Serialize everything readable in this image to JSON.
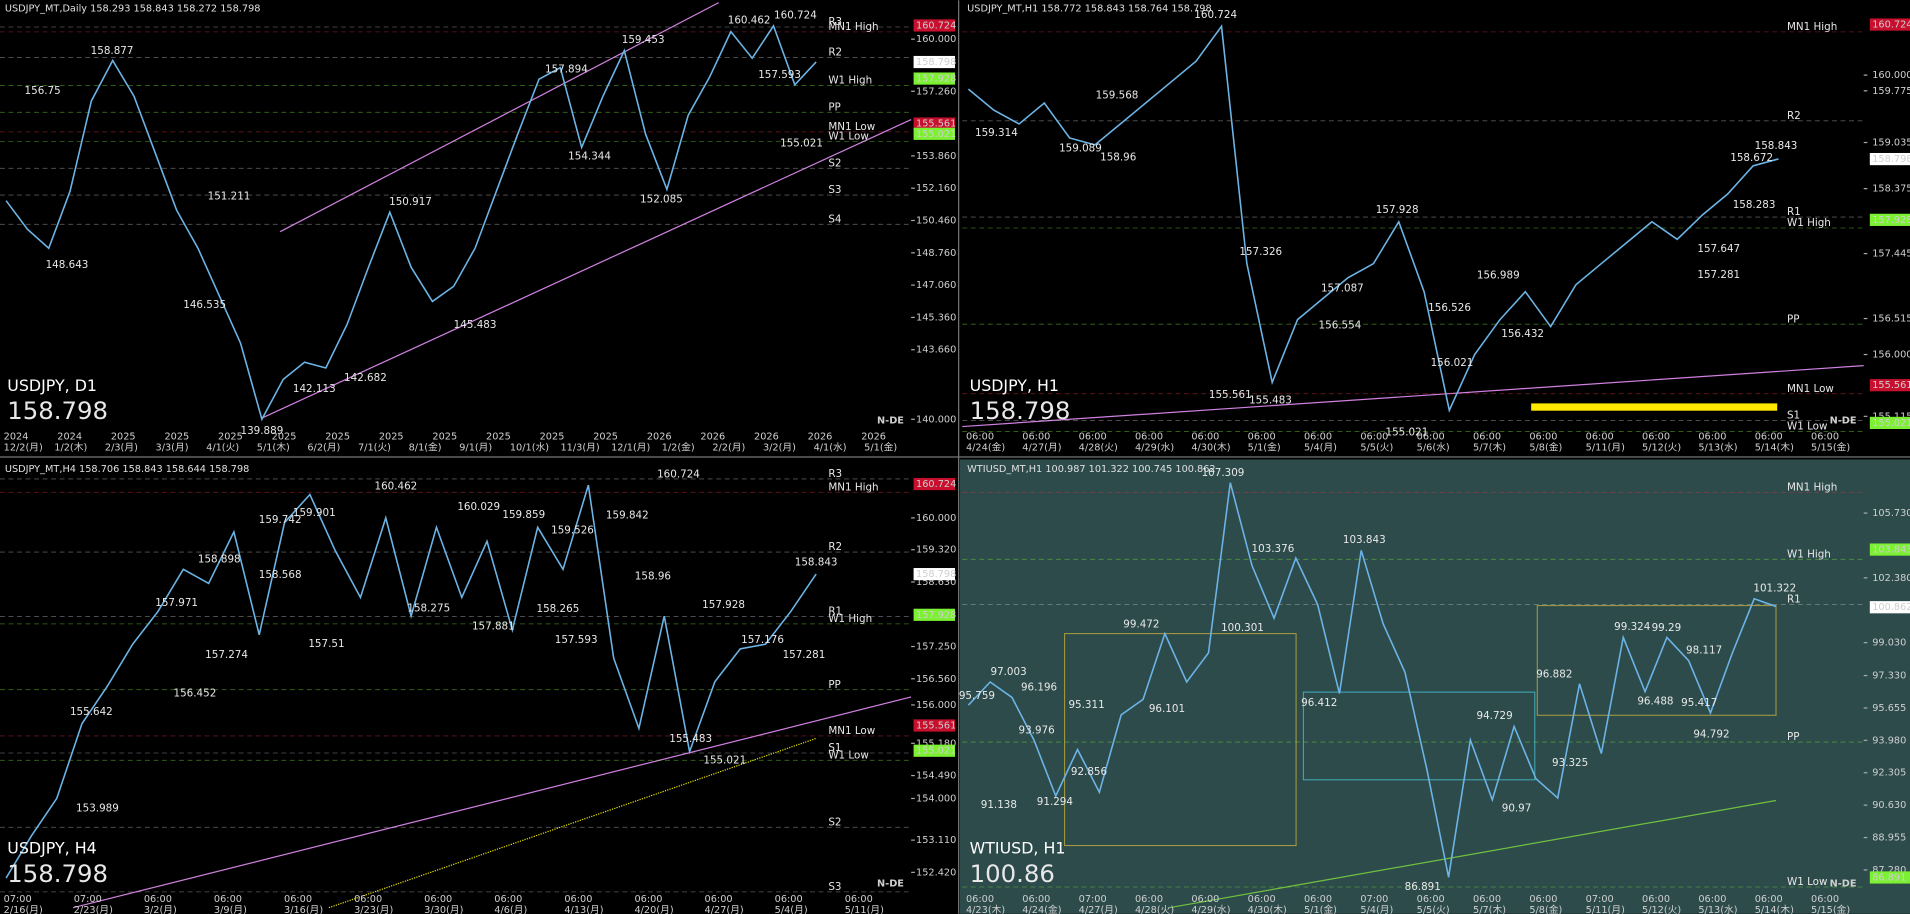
{
  "logo": "N-DE",
  "panels": [
    {
      "header": "USDJPY_MT,Daily  158.293 158.843 158.272 158.798",
      "symbol": "USDJPY, D1",
      "price": "158.798",
      "price_color": "#ffd21e",
      "ylim": [
        139.49,
        161.41
      ],
      "yticks": [
        {
          "value": 160,
          "label": "160.000"
        },
        {
          "value": 157.26,
          "label": "157.260"
        },
        {
          "value": 153.86,
          "label": "153.860"
        },
        {
          "value": 152.16,
          "label": "152.160"
        },
        {
          "value": 150.46,
          "label": "150.460"
        },
        {
          "value": 148.76,
          "label": "148.760"
        },
        {
          "value": 147.06,
          "label": "147.060"
        },
        {
          "value": 145.36,
          "label": "145.360"
        },
        {
          "value": 143.66,
          "label": "143.660"
        },
        {
          "value": 140,
          "label": "140.000"
        }
      ],
      "boxes": [
        {
          "value": 160.724,
          "color": "#c8102e"
        },
        {
          "value": 158.798,
          "color": "#ffffff"
        },
        {
          "value": 157.928,
          "color": "#7cf032"
        },
        {
          "value": 155.561,
          "color": "#c8102e"
        },
        {
          "value": 155.021,
          "color": "#7cf032"
        }
      ],
      "levels": [
        {
          "text": "R3",
          "color": "#c0c0c0"
        },
        {
          "text": "MN1 High",
          "color": "#e0304a"
        },
        {
          "text": "R2",
          "color": "#c0c0c0"
        },
        {
          "text": "W1 High",
          "color": "#7cf032"
        },
        {
          "text": "PP",
          "color": "#7cf032"
        },
        {
          "text": "MN1 Low",
          "color": "#e0304a"
        },
        {
          "text": "W1 Low",
          "color": "#7cf032"
        },
        {
          "text": "S2",
          "color": "#c0c0c0"
        },
        {
          "text": "S3",
          "color": "#c0c0c0"
        },
        {
          "text": "S4",
          "color": "#c0c0c0"
        }
      ],
      "annotations": [
        158.877,
        156.75,
        148.643,
        146.535,
        151.211,
        139.889,
        142.113,
        142.682,
        150.917,
        145.483,
        157.894,
        154.344,
        159.453,
        152.085,
        160.462,
        160.724,
        157.593,
        155.021
      ],
      "axis_top": [
        "2024",
        "2024",
        "2025",
        "2025",
        "2025",
        "2025",
        "2025",
        "2025",
        "2025",
        "2025",
        "2025",
        "2025",
        "2026",
        "2026",
        "2026",
        "2026",
        "2026"
      ],
      "axis_bottom": [
        "12/2(月)",
        "1/2(木)",
        "2/3(月)",
        "3/3(月)",
        "4/1(火)",
        "5/1(木)",
        "6/2(月)",
        "7/1(火)",
        "8/1(金)",
        "9/1(月)",
        "10/1(水)",
        "11/3(月)",
        "12/1(月)",
        "1/2(金)",
        "2/2(月)",
        "3/2(月)",
        "4/1(水)",
        "5/1(金)"
      ],
      "series": [
        151.5,
        150,
        149,
        152,
        156.75,
        158.88,
        157,
        154,
        151,
        149,
        146.5,
        144,
        140,
        142.1,
        143,
        142.7,
        145,
        148,
        150.9,
        148,
        146.2,
        147,
        149,
        152,
        155,
        157.9,
        158.5,
        154.3,
        157,
        159.4,
        155,
        152.1,
        156,
        158,
        160.4,
        159,
        160.7,
        157.6,
        158.8
      ]
    },
    {
      "header": "USDJPY_MT,H1  158.772 158.843 158.764 158.798",
      "symbol": "USDJPY, H1",
      "price": "158.798",
      "price_color": "#ffd21e",
      "ylim": [
        154.934,
        160.898
      ],
      "yticks": [
        {
          "value": 160,
          "label": "160.000"
        },
        {
          "value": 159.775,
          "label": "159.775"
        },
        {
          "value": 159.035,
          "label": "159.035"
        },
        {
          "value": 158.375,
          "label": "158.375"
        },
        {
          "value": 157.445,
          "label": "157.445"
        },
        {
          "value": 156.515,
          "label": "156.515"
        },
        {
          "value": 156,
          "label": "156.000"
        },
        {
          "value": 155.115,
          "label": "155.115"
        }
      ],
      "boxes": [
        {
          "value": 160.724,
          "color": "#c8102e"
        },
        {
          "value": 158.798,
          "color": "#ffffff"
        },
        {
          "value": 157.928,
          "color": "#7cf032"
        },
        {
          "value": 155.561,
          "color": "#c8102e"
        },
        {
          "value": 155.021,
          "color": "#7cf032"
        }
      ],
      "levels": [
        {
          "text": "MN1 High",
          "color": "#e0304a"
        },
        {
          "text": "R2",
          "color": "#c0c0c0"
        },
        {
          "text": "R1",
          "color": "#c0c0c0"
        },
        {
          "text": "W1 High",
          "color": "#7cf032"
        },
        {
          "text": "PP",
          "color": "#7cf032"
        },
        {
          "text": "MN1 Low",
          "color": "#e0304a"
        },
        {
          "text": "S1",
          "color": "#c0c0c0"
        },
        {
          "text": "W1 Low",
          "color": "#7cf032"
        }
      ],
      "annotations": [
        160.724,
        159.568,
        159.314,
        159.089,
        158.96,
        157.326,
        157.928,
        157.087,
        156.554,
        156.526,
        156.989,
        156.432,
        156.021,
        155.561,
        155.483,
        155.021,
        157.647,
        157.281,
        158.283,
        158.672,
        158.843
      ],
      "axis_top": [
        "06:00",
        "06:00",
        "06:00",
        "06:00",
        "06:00",
        "06:00",
        "06:00",
        "06:00",
        "06:00",
        "06:00",
        "06:00",
        "06:00",
        "06:00",
        "06:00",
        "06:00",
        "06:00"
      ],
      "axis_bottom": [
        "4/24(金)",
        "4/27(月)",
        "4/28(火)",
        "4/29(水)",
        "4/30(木)",
        "5/1(金)",
        "5/4(月)",
        "5/5(火)",
        "5/6(水)",
        "5/7(木)",
        "5/8(金)",
        "5/11(月)",
        "5/12(火)",
        "5/13(水)",
        "5/14(木)",
        "5/15(金)"
      ],
      "series": [
        159.8,
        159.5,
        159.3,
        159.6,
        159.1,
        159,
        159.3,
        159.6,
        159.9,
        160.2,
        160.7,
        157.3,
        155.6,
        156.5,
        156.8,
        157.1,
        157.3,
        157.9,
        156.9,
        155.2,
        156,
        156.5,
        156.9,
        156.4,
        157,
        157.3,
        157.6,
        157.9,
        157.65,
        158,
        158.3,
        158.7,
        158.8
      ]
    },
    {
      "header": "USDJPY_MT,H4  158.706 158.843 158.644 158.798",
      "symbol": "USDJPY, H4",
      "price": "158.798",
      "price_color": "#ffd21e",
      "ylim": [
        152.003,
        160.964
      ],
      "yticks": [
        {
          "value": 160,
          "label": "160.000"
        },
        {
          "value": 159.32,
          "label": "159.320"
        },
        {
          "value": 158.63,
          "label": "158.630"
        },
        {
          "value": 157.25,
          "label": "157.250"
        },
        {
          "value": 156.56,
          "label": "156.560"
        },
        {
          "value": 156,
          "label": "156.000"
        },
        {
          "value": 155.18,
          "label": "155.180"
        },
        {
          "value": 154.49,
          "label": "154.490"
        },
        {
          "value": 154,
          "label": "154.000"
        },
        {
          "value": 153.11,
          "label": "153.110"
        },
        {
          "value": 152.42,
          "label": "152.420"
        }
      ],
      "boxes": [
        {
          "value": 160.724,
          "color": "#c8102e"
        },
        {
          "value": 158.798,
          "color": "#ffffff"
        },
        {
          "value": 157.928,
          "color": "#7cf032"
        },
        {
          "value": 155.561,
          "color": "#c8102e"
        },
        {
          "value": 155.021,
          "color": "#7cf032"
        }
      ],
      "levels": [
        {
          "text": "R3",
          "color": "#c0c0c0"
        },
        {
          "text": "MN1 High",
          "color": "#e0304a"
        },
        {
          "text": "R2",
          "color": "#c0c0c0"
        },
        {
          "text": "R1",
          "color": "#c0c0c0"
        },
        {
          "text": "W1 High",
          "color": "#7cf032"
        },
        {
          "text": "PP",
          "color": "#7cf032"
        },
        {
          "text": "MN1 Low",
          "color": "#e0304a"
        },
        {
          "text": "S1",
          "color": "#c0c0c0"
        },
        {
          "text": "W1 Low",
          "color": "#7cf032"
        },
        {
          "text": "S2",
          "color": "#c0c0c0"
        },
        {
          "text": "S3",
          "color": "#c0c0c0"
        }
      ],
      "annotations": [
        153.989,
        155.642,
        156.452,
        157.274,
        157.971,
        158.898,
        158.568,
        157.51,
        159.742,
        159.901,
        160.462,
        158.275,
        160.029,
        157.881,
        159.859,
        159.526,
        158.265,
        157.593,
        159.842,
        158.96,
        160.724,
        157.928,
        155.483,
        155.021,
        157.176,
        157.281,
        158.843
      ],
      "axis_top": [
        "07:00",
        "07:00",
        "06:00",
        "06:00",
        "06:00",
        "06:00",
        "06:00",
        "06:00",
        "06:00",
        "06:00",
        "06:00",
        "06:00",
        "06:00"
      ],
      "axis_bottom": [
        "2/16(月)",
        "2/23(月)",
        "3/2(月)",
        "3/9(月)",
        "3/16(月)",
        "3/23(月)",
        "3/30(月)",
        "4/6(月)",
        "4/13(月)",
        "4/20(月)",
        "4/27(月)",
        "5/4(月)",
        "5/11(月)"
      ],
      "series": [
        152.3,
        153.2,
        154,
        155.6,
        156.4,
        157.3,
        158,
        158.9,
        158.6,
        159.7,
        157.5,
        159.9,
        160.5,
        159.3,
        158.3,
        160,
        157.9,
        159.8,
        158.3,
        159.5,
        157.6,
        159.8,
        158.9,
        160.7,
        157,
        155.5,
        157.9,
        155,
        156.5,
        157.2,
        157.3,
        158,
        158.8
      ]
    },
    {
      "header": "WTIUSD_MT,H1  100.987 101.322 100.745 100.862",
      "symbol": "WTIUSD, H1",
      "price": "100.86",
      "price_color": "#3a9cf0",
      "ylim": [
        86.147,
        107.81
      ],
      "yticks": [
        {
          "value": 105.73,
          "label": "105.730"
        },
        {
          "value": 102.38,
          "label": "102.380"
        },
        {
          "value": 99.03,
          "label": "99.030"
        },
        {
          "value": 97.33,
          "label": "97.330"
        },
        {
          "value": 95.655,
          "label": "95.655"
        },
        {
          "value": 93.98,
          "label": "93.980"
        },
        {
          "value": 92.305,
          "label": "92.305"
        },
        {
          "value": 90.63,
          "label": "90.630"
        },
        {
          "value": 88.955,
          "label": "88.955"
        },
        {
          "value": 87.28,
          "label": "87.280"
        }
      ],
      "boxes": [
        {
          "value": 103.843,
          "color": "#7cf032"
        },
        {
          "value": 100.862,
          "color": "#ffffff"
        },
        {
          "value": 86.891,
          "color": "#7cf032"
        }
      ],
      "levels": [
        {
          "text": "MN1 High",
          "color": "#e0304a"
        },
        {
          "text": "W1 High",
          "color": "#7cf032"
        },
        {
          "text": "R1",
          "color": "#c0c0c0"
        },
        {
          "text": "PP",
          "color": "#7cf032"
        },
        {
          "text": "W1 Low",
          "color": "#7cf032"
        }
      ],
      "annotations": [
        95.759,
        97.003,
        96.196,
        93.976,
        91.138,
        91.294,
        95.311,
        92.856,
        99.472,
        96.101,
        107.309,
        100.301,
        103.376,
        103.843,
        96.412,
        86.891,
        94.729,
        90.97,
        96.882,
        93.325,
        99.324,
        99.29,
        96.488,
        98.117,
        95.417,
        94.792,
        101.322
      ],
      "axis_top": [
        "06:00",
        "06:00",
        "07:00",
        "06:00",
        "06:00",
        "06:00",
        "06:00",
        "07:00",
        "06:00",
        "06:00",
        "06:00",
        "07:00",
        "06:00",
        "06:00",
        "06:00",
        "06:00"
      ],
      "axis_bottom": [
        "4/23(木)",
        "4/24(金)",
        "4/27(月)",
        "4/28(火)",
        "4/29(水)",
        "4/30(木)",
        "5/1(金)",
        "5/4(月)",
        "5/5(火)",
        "5/7(木)",
        "5/8(金)",
        "5/11(月)",
        "5/12(火)",
        "5/13(水)",
        "5/14(木)",
        "5/15(金)"
      ],
      "series": [
        95.8,
        97,
        96.2,
        94,
        91.1,
        93.5,
        91.3,
        95.3,
        96.1,
        99.5,
        97,
        98.5,
        107.3,
        103,
        100.3,
        103.4,
        101,
        96.4,
        103.8,
        100,
        97.5,
        92.5,
        86.9,
        94,
        90.9,
        94.7,
        92,
        91,
        96.9,
        93.3,
        99.3,
        96.5,
        99.3,
        98.1,
        95.4,
        98.5,
        101.3,
        100.9
      ]
    }
  ]
}
